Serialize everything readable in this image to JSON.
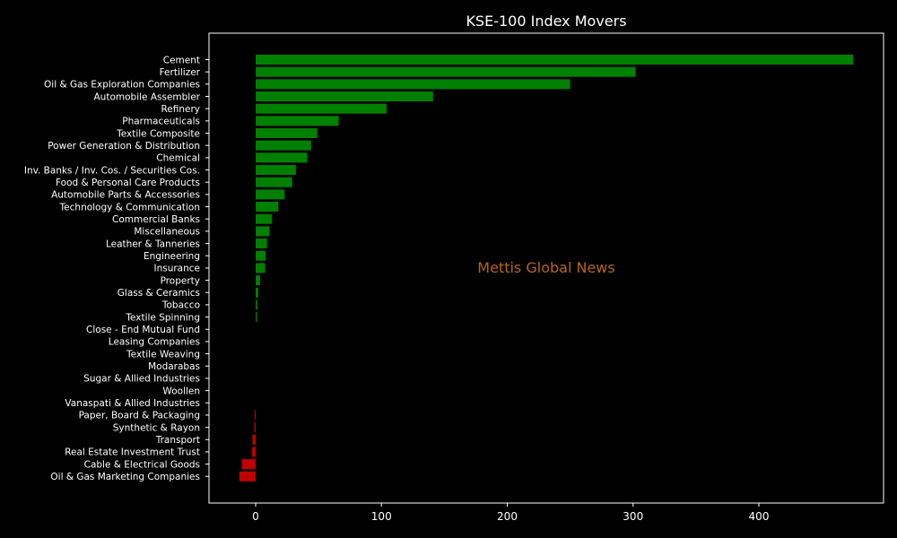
{
  "chart_data": {
    "type": "bar",
    "orientation": "horizontal",
    "title": "KSE-100 Index Movers",
    "xlabel": "",
    "ylabel": "",
    "xlim": [
      -37,
      494
    ],
    "xticks": [
      0,
      100,
      200,
      300,
      400
    ],
    "grid": false,
    "watermark": "Mettis Global News",
    "categories": [
      "Cement",
      "Fertilizer",
      "Oil & Gas Exploration Companies",
      "Automobile Assembler",
      "Refinery",
      "Pharmaceuticals",
      "Textile Composite",
      "Power Generation & Distribution",
      "Chemical",
      "Inv. Banks / Inv. Cos. / Securities Cos.",
      "Food & Personal Care Products",
      "Automobile Parts & Accessories",
      "Technology & Communication",
      "Commercial Banks",
      "Miscellaneous",
      "Leather & Tanneries",
      "Engineering",
      "Insurance",
      "Property",
      "Glass & Ceramics",
      "Tobacco",
      "Textile Spinning",
      "Close - End Mutual Fund",
      "Leasing Companies",
      "Textile Weaving",
      "Modarabas",
      "Sugar & Allied Industries",
      "Woollen",
      "Vanaspati & Allied Industries",
      "Paper, Board & Packaging",
      "Synthetic & Rayon",
      "Transport",
      "Real Estate Investment Trust",
      "Cable & Electrical Goods",
      "Oil & Gas Marketing Companies"
    ],
    "values": [
      475,
      302,
      250,
      141,
      104,
      66,
      49,
      44,
      41,
      32,
      29,
      23,
      18,
      13,
      11,
      9,
      8,
      7.5,
      3.5,
      2,
      1.2,
      1,
      0,
      0,
      0,
      0,
      0,
      0,
      0,
      -0.8,
      -1,
      -2.5,
      -2.8,
      -11,
      -13
    ]
  },
  "colors": {
    "background": "#000000",
    "positive": "#008000",
    "negative": "#c00000",
    "axes": "#ffffff",
    "text": "#ffffff",
    "watermark": "#b5651d"
  }
}
